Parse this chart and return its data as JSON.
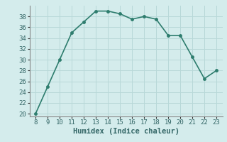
{
  "x": [
    8,
    9,
    10,
    11,
    12,
    13,
    14,
    15,
    16,
    17,
    18,
    19,
    20,
    21,
    22,
    23
  ],
  "y": [
    20,
    25,
    30,
    35,
    37,
    39,
    39,
    38.5,
    37.5,
    38,
    37.5,
    34.5,
    34.5,
    30.5,
    26.5,
    28
  ],
  "line_color": "#2e7d6e",
  "marker": "o",
  "marker_size": 2.5,
  "linewidth": 1.2,
  "bg_color": "#d4ecec",
  "grid_color": "#b8d8d8",
  "xlabel": "Humidex (Indice chaleur)",
  "xlabel_fontsize": 7.5,
  "xticks": [
    8,
    9,
    10,
    11,
    12,
    13,
    14,
    15,
    16,
    17,
    18,
    19,
    20,
    21,
    22,
    23
  ],
  "yticks": [
    20,
    22,
    24,
    26,
    28,
    30,
    32,
    34,
    36,
    38
  ],
  "ylim": [
    19.5,
    40
  ],
  "xlim": [
    7.5,
    23.5
  ],
  "tick_fontsize": 6.5
}
